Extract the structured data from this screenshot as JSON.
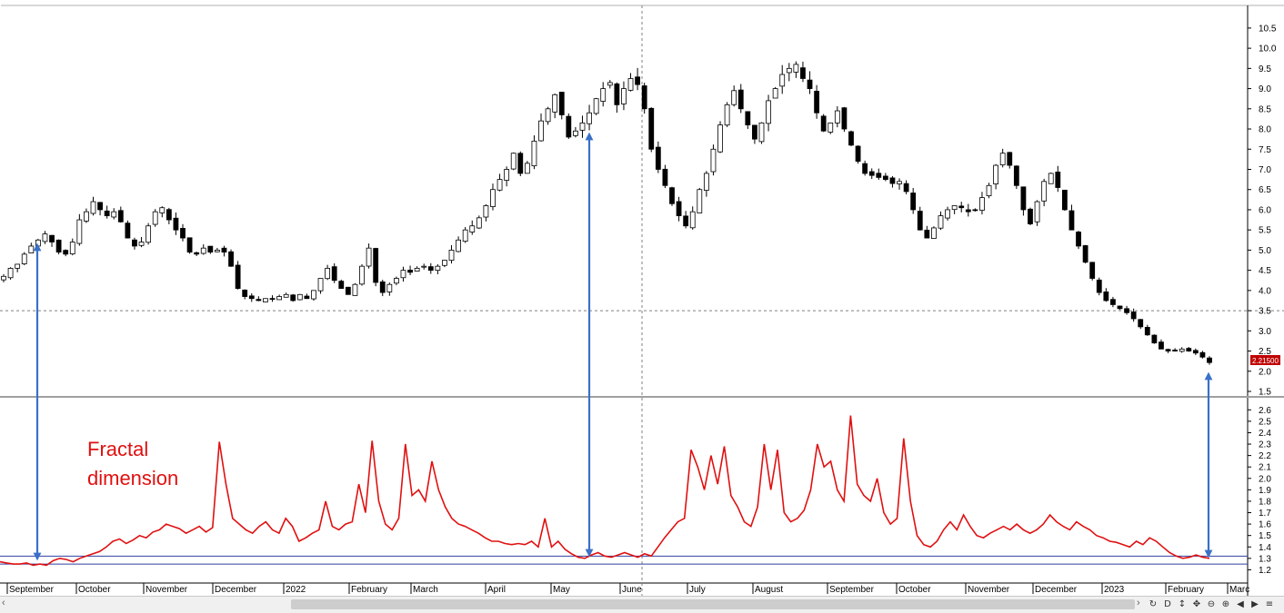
{
  "chart_data": [
    {
      "type": "candlestick",
      "title": "",
      "ylim": [
        1.5,
        10.7
      ],
      "y_ticks": [
        1.5,
        2.0,
        2.5,
        3.0,
        3.5,
        4.0,
        4.5,
        5.0,
        5.5,
        6.0,
        6.5,
        7.0,
        7.5,
        8.0,
        8.5,
        9.0,
        9.5,
        10.0,
        10.5
      ],
      "y_tick_labels": [
        "1.5",
        "2.0",
        "2.5",
        "3.0",
        "3.5",
        "4.0",
        "4.5",
        "5.0",
        "5.5",
        "6.0",
        "6.5",
        "7.0",
        "7.5",
        "8.0",
        "8.5",
        "9.0",
        "9.5",
        "10.0",
        "10.5"
      ],
      "last_price_label": "2.21500",
      "last_price": 2.215,
      "reference_level": 3.5,
      "close": [
        4.35,
        4.55,
        4.65,
        4.9,
        5.1,
        5.25,
        5.4,
        5.2,
        4.95,
        4.9,
        5.2,
        5.75,
        5.95,
        6.2,
        6.0,
        5.85,
        5.95,
        5.7,
        5.3,
        5.1,
        5.2,
        5.6,
        5.95,
        6.05,
        5.75,
        5.5,
        5.3,
        4.95,
        4.9,
        5.05,
        4.95,
        5.0,
        4.95,
        4.6,
        4.05,
        3.85,
        3.8,
        3.75,
        3.8,
        3.8,
        3.85,
        3.9,
        3.75,
        3.9,
        3.8,
        4.0,
        4.3,
        4.55,
        4.25,
        4.05,
        3.9,
        4.15,
        4.6,
        5.05,
        4.2,
        3.95,
        4.15,
        4.3,
        4.5,
        4.45,
        4.55,
        4.6,
        4.5,
        4.6,
        4.75,
        5.0,
        5.25,
        5.5,
        5.6,
        5.8,
        6.1,
        6.5,
        6.75,
        7.0,
        7.4,
        6.9,
        7.15,
        7.7,
        8.2,
        8.5,
        8.85,
        8.35,
        7.8,
        7.95,
        8.15,
        8.4,
        8.75,
        9.0,
        9.15,
        8.6,
        9.0,
        9.25,
        9.1,
        8.5,
        7.5,
        7.0,
        6.6,
        6.15,
        5.85,
        5.6,
        5.95,
        6.5,
        6.9,
        7.5,
        8.1,
        8.6,
        8.95,
        8.5,
        8.1,
        7.75,
        8.15,
        8.7,
        9.0,
        9.35,
        9.5,
        9.6,
        9.25,
        9.0,
        8.4,
        7.95,
        8.15,
        8.45,
        8.0,
        7.6,
        7.2,
        6.9,
        6.85,
        6.8,
        6.75,
        6.65,
        6.7,
        6.45,
        6.0,
        5.5,
        5.3,
        5.55,
        5.85,
        6.0,
        6.1,
        6.05,
        5.95,
        6.0,
        6.3,
        6.6,
        7.1,
        7.4,
        7.1,
        6.6,
        6.0,
        5.65,
        6.2,
        6.7,
        6.9,
        6.55,
        6.0,
        5.5,
        5.1,
        4.7,
        4.3,
        3.95,
        3.75,
        3.65,
        3.55,
        3.45,
        3.3,
        3.1,
        2.9,
        2.7,
        2.55,
        2.5,
        2.5,
        2.55,
        2.5,
        2.45,
        2.35,
        2.215
      ]
    },
    {
      "type": "line",
      "title": "",
      "series": [
        {
          "name": "",
          "values": [
            1.27,
            1.26,
            1.25,
            1.25,
            1.26,
            1.24,
            1.25,
            1.24,
            1.28,
            1.3,
            1.29,
            1.27,
            1.3,
            1.32,
            1.34,
            1.36,
            1.4,
            1.45,
            1.47,
            1.43,
            1.46,
            1.5,
            1.48,
            1.53,
            1.55,
            1.6,
            1.58,
            1.56,
            1.52,
            1.55,
            1.58,
            1.53,
            1.57,
            2.32,
            1.95,
            1.65,
            1.6,
            1.55,
            1.52,
            1.58,
            1.62,
            1.55,
            1.52,
            1.65,
            1.58,
            1.45,
            1.48,
            1.52,
            1.55,
            1.8,
            1.58,
            1.55,
            1.6,
            1.62,
            1.95,
            1.7,
            2.33,
            1.8,
            1.6,
            1.55,
            1.65,
            2.3,
            1.85,
            1.9,
            1.8,
            2.15,
            1.9,
            1.75,
            1.65,
            1.6,
            1.58,
            1.55,
            1.52,
            1.48,
            1.45,
            1.45,
            1.43,
            1.42,
            1.43,
            1.42,
            1.45,
            1.4,
            1.65,
            1.4,
            1.45,
            1.38,
            1.34,
            1.31,
            1.3,
            1.33,
            1.35,
            1.32,
            1.31,
            1.33,
            1.35,
            1.33,
            1.31,
            1.34,
            1.32,
            1.4,
            1.48,
            1.55,
            1.62,
            1.65,
            2.25,
            2.1,
            1.9,
            2.2,
            1.95,
            2.28,
            1.85,
            1.75,
            1.62,
            1.58,
            1.75,
            2.3,
            1.9,
            2.25,
            1.7,
            1.62,
            1.65,
            1.72,
            1.9,
            2.3,
            2.1,
            2.15,
            1.9,
            1.8,
            2.55,
            1.95,
            1.85,
            1.8,
            2.0,
            1.7,
            1.6,
            1.65,
            2.35,
            1.8,
            1.5,
            1.42,
            1.4,
            1.45,
            1.55,
            1.62,
            1.55,
            1.68,
            1.58,
            1.5,
            1.48,
            1.52,
            1.55,
            1.58,
            1.55,
            1.6,
            1.55,
            1.52,
            1.55,
            1.6,
            1.68,
            1.62,
            1.58,
            1.55,
            1.62,
            1.58,
            1.55,
            1.5,
            1.48,
            1.45,
            1.44,
            1.42,
            1.4,
            1.45,
            1.42,
            1.48,
            1.45,
            1.4,
            1.35,
            1.32,
            1.3,
            1.31,
            1.33,
            1.31,
            1.3
          ]
        }
      ],
      "annotation": "Fractal\ndimension",
      "ylim": [
        1.1,
        2.65
      ],
      "y_ticks": [
        1.2,
        1.3,
        1.4,
        1.5,
        1.6,
        1.7,
        1.8,
        1.9,
        2.0,
        2.1,
        2.2,
        2.3,
        2.4,
        2.5,
        2.6
      ],
      "y_tick_labels": [
        "1.2",
        "1.3",
        "1.4",
        "1.5",
        "1.6",
        "1.7",
        "1.8",
        "1.9",
        "2.0",
        "2.1",
        "2.2",
        "2.3",
        "2.4",
        "2.5",
        "2.6"
      ],
      "reference_levels": [
        1.25,
        1.32
      ]
    }
  ],
  "x_axis_labels": [
    "September",
    "October",
    "November",
    "December",
    "2022",
    "February",
    "March",
    "April",
    "May",
    "June",
    "July",
    "August",
    "September",
    "October",
    "November",
    "December",
    "2023",
    "February",
    "Marc"
  ],
  "colors": {
    "up": "#ffffff",
    "down": "#000000",
    "fractal": "#e01010",
    "arrow": "#3a70c8",
    "ref_line": "#3040a0",
    "price_badge": "#c00000"
  },
  "toolbar": {
    "icons": [
      "sync-icon",
      "d-button",
      "vertical-resize-icon",
      "move-icon",
      "zoom-out-icon",
      "zoom-in-icon",
      "list-icon"
    ],
    "d_label": "D"
  }
}
